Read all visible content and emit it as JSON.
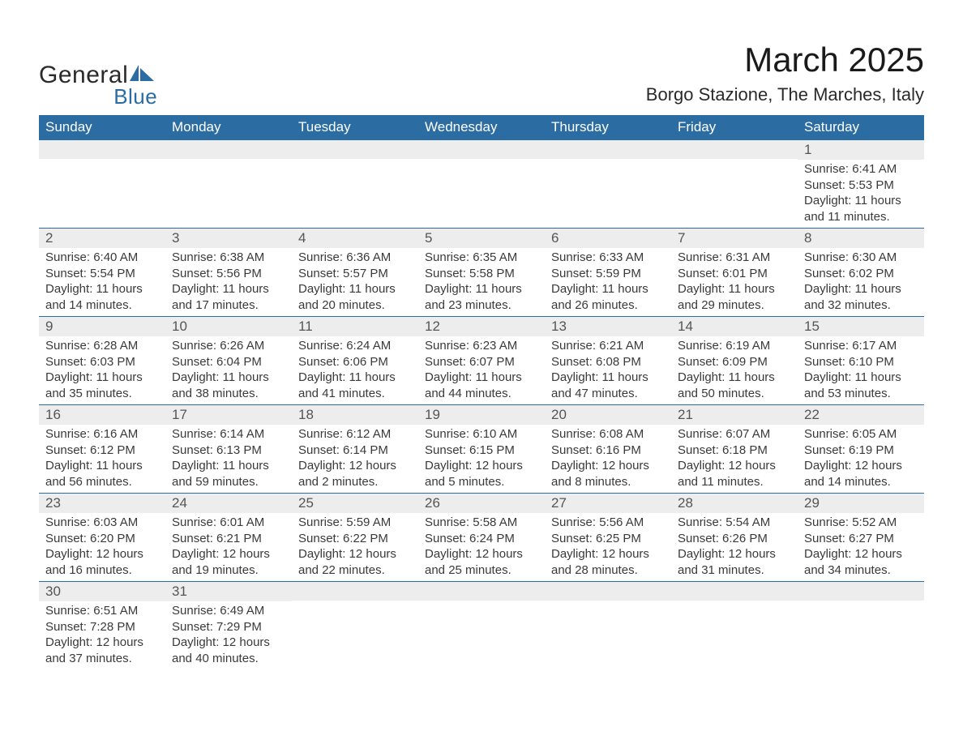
{
  "logo": {
    "word1": "General",
    "word2": "Blue"
  },
  "title": "March 2025",
  "location": "Borgo Stazione, The Marches, Italy",
  "colors": {
    "header_bg": "#2b6ca3",
    "header_text": "#ffffff",
    "daynum_bg": "#ededed",
    "border": "#2b6ca3",
    "body_text": "#3a3a3a",
    "page_bg": "#ffffff"
  },
  "typography": {
    "title_fontsize": 42,
    "location_fontsize": 22,
    "header_fontsize": 17,
    "daynum_fontsize": 17,
    "body_fontsize": 15,
    "font_family": "Arial"
  },
  "day_names": [
    "Sunday",
    "Monday",
    "Tuesday",
    "Wednesday",
    "Thursday",
    "Friday",
    "Saturday"
  ],
  "labels": {
    "sunrise": "Sunrise:",
    "sunset": "Sunset:",
    "daylight": "Daylight:"
  },
  "weeks": [
    [
      null,
      null,
      null,
      null,
      null,
      null,
      {
        "d": "1",
        "sunrise": "6:41 AM",
        "sunset": "5:53 PM",
        "daylight": "11 hours and 11 minutes."
      }
    ],
    [
      {
        "d": "2",
        "sunrise": "6:40 AM",
        "sunset": "5:54 PM",
        "daylight": "11 hours and 14 minutes."
      },
      {
        "d": "3",
        "sunrise": "6:38 AM",
        "sunset": "5:56 PM",
        "daylight": "11 hours and 17 minutes."
      },
      {
        "d": "4",
        "sunrise": "6:36 AM",
        "sunset": "5:57 PM",
        "daylight": "11 hours and 20 minutes."
      },
      {
        "d": "5",
        "sunrise": "6:35 AM",
        "sunset": "5:58 PM",
        "daylight": "11 hours and 23 minutes."
      },
      {
        "d": "6",
        "sunrise": "6:33 AM",
        "sunset": "5:59 PM",
        "daylight": "11 hours and 26 minutes."
      },
      {
        "d": "7",
        "sunrise": "6:31 AM",
        "sunset": "6:01 PM",
        "daylight": "11 hours and 29 minutes."
      },
      {
        "d": "8",
        "sunrise": "6:30 AM",
        "sunset": "6:02 PM",
        "daylight": "11 hours and 32 minutes."
      }
    ],
    [
      {
        "d": "9",
        "sunrise": "6:28 AM",
        "sunset": "6:03 PM",
        "daylight": "11 hours and 35 minutes."
      },
      {
        "d": "10",
        "sunrise": "6:26 AM",
        "sunset": "6:04 PM",
        "daylight": "11 hours and 38 minutes."
      },
      {
        "d": "11",
        "sunrise": "6:24 AM",
        "sunset": "6:06 PM",
        "daylight": "11 hours and 41 minutes."
      },
      {
        "d": "12",
        "sunrise": "6:23 AM",
        "sunset": "6:07 PM",
        "daylight": "11 hours and 44 minutes."
      },
      {
        "d": "13",
        "sunrise": "6:21 AM",
        "sunset": "6:08 PM",
        "daylight": "11 hours and 47 minutes."
      },
      {
        "d": "14",
        "sunrise": "6:19 AM",
        "sunset": "6:09 PM",
        "daylight": "11 hours and 50 minutes."
      },
      {
        "d": "15",
        "sunrise": "6:17 AM",
        "sunset": "6:10 PM",
        "daylight": "11 hours and 53 minutes."
      }
    ],
    [
      {
        "d": "16",
        "sunrise": "6:16 AM",
        "sunset": "6:12 PM",
        "daylight": "11 hours and 56 minutes."
      },
      {
        "d": "17",
        "sunrise": "6:14 AM",
        "sunset": "6:13 PM",
        "daylight": "11 hours and 59 minutes."
      },
      {
        "d": "18",
        "sunrise": "6:12 AM",
        "sunset": "6:14 PM",
        "daylight": "12 hours and 2 minutes."
      },
      {
        "d": "19",
        "sunrise": "6:10 AM",
        "sunset": "6:15 PM",
        "daylight": "12 hours and 5 minutes."
      },
      {
        "d": "20",
        "sunrise": "6:08 AM",
        "sunset": "6:16 PM",
        "daylight": "12 hours and 8 minutes."
      },
      {
        "d": "21",
        "sunrise": "6:07 AM",
        "sunset": "6:18 PM",
        "daylight": "12 hours and 11 minutes."
      },
      {
        "d": "22",
        "sunrise": "6:05 AM",
        "sunset": "6:19 PM",
        "daylight": "12 hours and 14 minutes."
      }
    ],
    [
      {
        "d": "23",
        "sunrise": "6:03 AM",
        "sunset": "6:20 PM",
        "daylight": "12 hours and 16 minutes."
      },
      {
        "d": "24",
        "sunrise": "6:01 AM",
        "sunset": "6:21 PM",
        "daylight": "12 hours and 19 minutes."
      },
      {
        "d": "25",
        "sunrise": "5:59 AM",
        "sunset": "6:22 PM",
        "daylight": "12 hours and 22 minutes."
      },
      {
        "d": "26",
        "sunrise": "5:58 AM",
        "sunset": "6:24 PM",
        "daylight": "12 hours and 25 minutes."
      },
      {
        "d": "27",
        "sunrise": "5:56 AM",
        "sunset": "6:25 PM",
        "daylight": "12 hours and 28 minutes."
      },
      {
        "d": "28",
        "sunrise": "5:54 AM",
        "sunset": "6:26 PM",
        "daylight": "12 hours and 31 minutes."
      },
      {
        "d": "29",
        "sunrise": "5:52 AM",
        "sunset": "6:27 PM",
        "daylight": "12 hours and 34 minutes."
      }
    ],
    [
      {
        "d": "30",
        "sunrise": "6:51 AM",
        "sunset": "7:28 PM",
        "daylight": "12 hours and 37 minutes."
      },
      {
        "d": "31",
        "sunrise": "6:49 AM",
        "sunset": "7:29 PM",
        "daylight": "12 hours and 40 minutes."
      },
      null,
      null,
      null,
      null,
      null
    ]
  ]
}
